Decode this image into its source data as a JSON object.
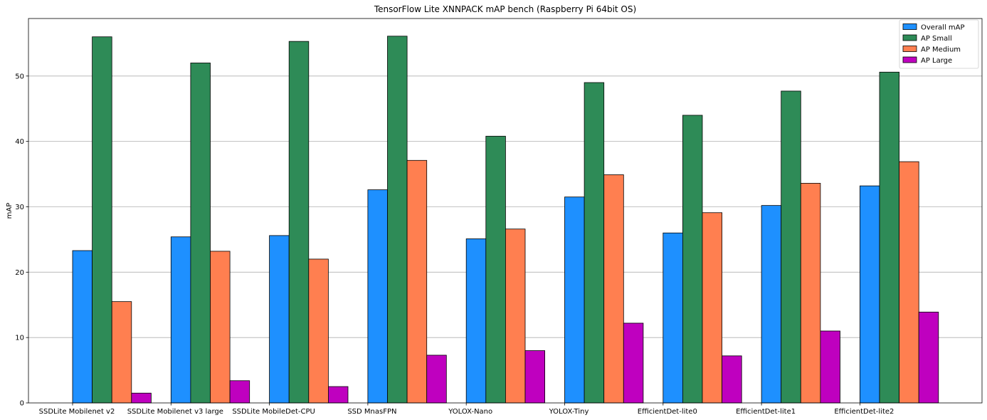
{
  "chart_data": {
    "type": "bar",
    "title": "TensorFlow Lite XNNPACK mAP bench (Raspberry Pi 64bit OS)",
    "xlabel": "",
    "ylabel": "mAP",
    "ylim": [
      0,
      58.8
    ],
    "yticks": [
      0,
      10,
      20,
      30,
      40,
      50
    ],
    "grid": "y",
    "legend_position": "top-right",
    "categories": [
      "SSDLite Mobilenet v2",
      "SSDLite Mobilenet v3 large",
      "SSDLite MobileDet-CPU",
      "SSD MnasFPN",
      "YOLOX-Nano",
      "YOLOX-Tiny",
      "EfficientDet-lite0",
      "EfficientDet-lite1",
      "EfficientDet-lite2"
    ],
    "series": [
      {
        "name": "Overall mAP",
        "color": "#1e90ff",
        "values": [
          23.3,
          25.4,
          25.6,
          32.6,
          25.1,
          31.5,
          26.0,
          30.2,
          33.2
        ]
      },
      {
        "name": "AP Small",
        "color": "#2e8b57",
        "values": [
          56.0,
          52.0,
          55.3,
          56.1,
          40.8,
          49.0,
          44.0,
          47.7,
          50.6
        ]
      },
      {
        "name": "AP Medium",
        "color": "#ff7f50",
        "values": [
          15.5,
          23.2,
          22.0,
          37.1,
          26.6,
          34.9,
          29.1,
          33.6,
          36.9
        ]
      },
      {
        "name": "AP Large",
        "color": "#bf00bf",
        "values": [
          1.5,
          3.4,
          2.5,
          7.3,
          8.0,
          12.2,
          7.2,
          11.0,
          13.9
        ]
      }
    ]
  }
}
